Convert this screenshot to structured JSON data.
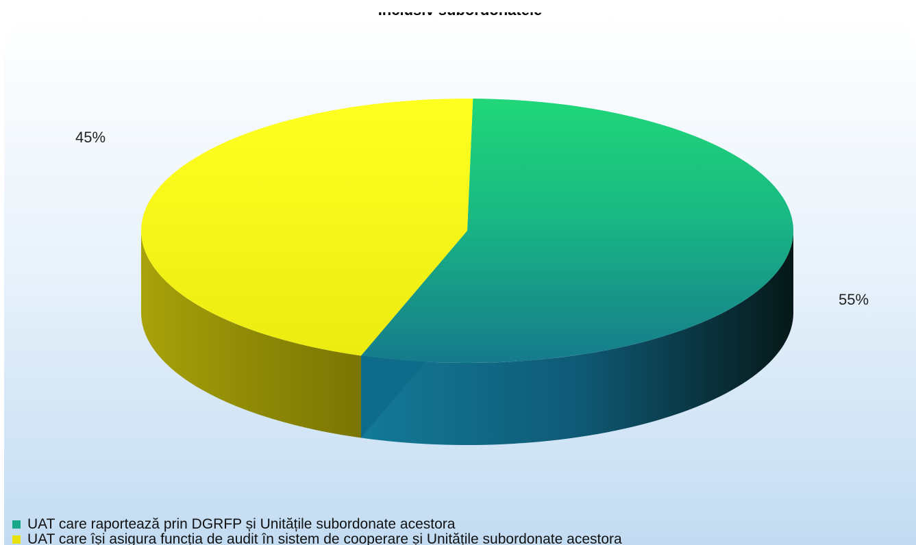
{
  "chart_data": {
    "type": "pie",
    "title": "Inclusiv subordonatele",
    "slices": [
      {
        "label": "UAT care raportează prin DGRFP și Unitățile subordonate acestora",
        "value": 55,
        "value_label": "55%",
        "color": "#1fd47a"
      },
      {
        "label": "UAT care își asigura funcția de audit în sistem de cooperare și Unitățile subordonate acestora",
        "value": 45,
        "value_label": "45%",
        "color": "#ffff1a"
      }
    ],
    "legend_position": "bottom",
    "style": "3d"
  }
}
